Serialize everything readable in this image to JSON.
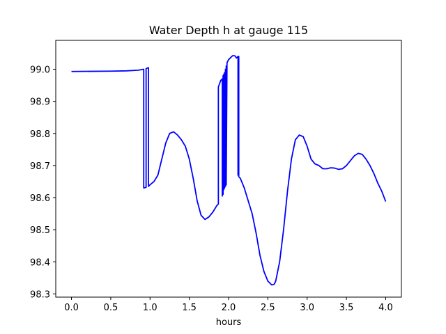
{
  "chart_data": {
    "type": "line",
    "title": "Water Depth h at gauge 115",
    "xlabel": "hours",
    "ylabel": "",
    "xlim": [
      -0.2,
      4.2
    ],
    "ylim": [
      98.29,
      99.09
    ],
    "xticks": [
      0.0,
      0.5,
      1.0,
      1.5,
      2.0,
      2.5,
      3.0,
      3.5,
      4.0
    ],
    "xtick_labels": [
      "0.0",
      "0.5",
      "1.0",
      "1.5",
      "2.0",
      "2.5",
      "3.0",
      "3.5",
      "4.0"
    ],
    "yticks": [
      98.3,
      98.4,
      98.5,
      98.6,
      98.7,
      98.8,
      98.9,
      99.0
    ],
    "ytick_labels": [
      "98.3",
      "98.4",
      "98.5",
      "98.6",
      "98.7",
      "98.8",
      "98.9",
      "99.0"
    ],
    "grid": false,
    "series": [
      {
        "color": "#0000ff",
        "x": [
          0.0,
          0.5,
          0.7,
          0.85,
          0.92,
          0.92,
          0.95,
          0.95,
          0.98,
          0.98,
          1.0,
          1.05,
          1.1,
          1.15,
          1.2,
          1.25,
          1.3,
          1.35,
          1.4,
          1.45,
          1.5,
          1.55,
          1.6,
          1.65,
          1.7,
          1.75,
          1.8,
          1.85,
          1.87,
          1.87,
          1.9,
          1.92,
          1.92,
          1.93,
          1.93,
          1.94,
          1.94,
          1.95,
          1.95,
          1.96,
          1.96,
          1.97,
          1.97,
          1.98,
          2.0,
          2.05,
          2.08,
          2.1,
          2.12,
          2.12,
          2.13,
          2.13,
          2.15,
          2.2,
          2.25,
          2.3,
          2.35,
          2.4,
          2.45,
          2.5,
          2.55,
          2.58,
          2.6,
          2.65,
          2.7,
          2.75,
          2.8,
          2.85,
          2.9,
          2.95,
          3.0,
          3.05,
          3.1,
          3.15,
          3.2,
          3.25,
          3.3,
          3.35,
          3.4,
          3.45,
          3.5,
          3.55,
          3.6,
          3.65,
          3.7,
          3.75,
          3.8,
          3.85,
          3.9,
          3.95,
          4.0
        ],
        "y": [
          98.993,
          98.994,
          98.995,
          98.997,
          99.0,
          98.63,
          98.632,
          99.002,
          99.005,
          98.635,
          98.64,
          98.65,
          98.67,
          98.72,
          98.77,
          98.8,
          98.805,
          98.795,
          98.78,
          98.76,
          98.72,
          98.66,
          98.59,
          98.545,
          98.532,
          98.54,
          98.555,
          98.575,
          98.58,
          98.945,
          98.965,
          98.97,
          98.605,
          98.98,
          98.61,
          98.985,
          98.625,
          98.99,
          98.63,
          99.0,
          98.635,
          99.01,
          98.64,
          99.02,
          99.03,
          99.042,
          99.042,
          99.035,
          99.04,
          98.67,
          99.04,
          98.665,
          98.66,
          98.63,
          98.59,
          98.55,
          98.49,
          98.42,
          98.37,
          98.34,
          98.328,
          98.33,
          98.34,
          98.4,
          98.5,
          98.62,
          98.72,
          98.78,
          98.795,
          98.79,
          98.76,
          98.72,
          98.705,
          98.7,
          98.69,
          98.69,
          98.693,
          98.692,
          98.688,
          98.69,
          98.7,
          98.715,
          98.73,
          98.738,
          98.735,
          98.72,
          98.7,
          98.675,
          98.645,
          98.62,
          98.588
        ]
      }
    ]
  }
}
